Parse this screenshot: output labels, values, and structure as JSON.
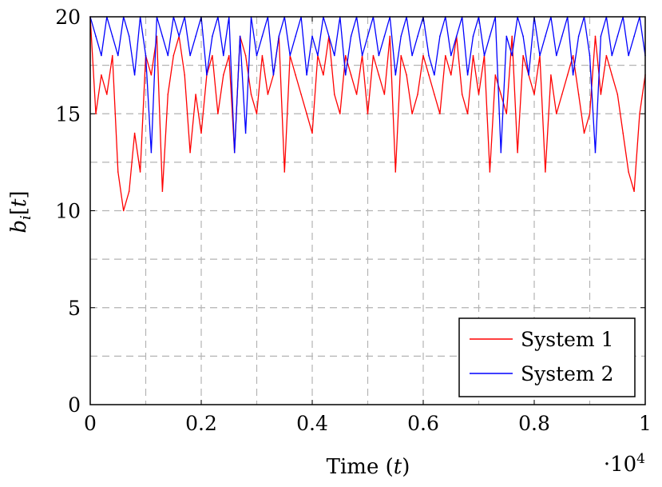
{
  "chart_data": {
    "type": "line",
    "xlabel": "Time (t)",
    "ylabel": "b_i[t]",
    "x_multiplier_label": "·10^4",
    "xlim": [
      0,
      1
    ],
    "ylim": [
      0,
      20
    ],
    "x_ticks": [
      "0",
      "0.2",
      "0.4",
      "0.6",
      "0.8",
      "1"
    ],
    "y_ticks": [
      "0",
      "5",
      "10",
      "15",
      "20"
    ],
    "grid": true,
    "legend_position": "bottom-right",
    "series": [
      {
        "name": "System 1",
        "color": "#ff0000",
        "x": [
          0,
          0.01,
          0.02,
          0.03,
          0.04,
          0.05,
          0.06,
          0.07,
          0.08,
          0.09,
          0.1,
          0.11,
          0.12,
          0.13,
          0.14,
          0.15,
          0.16,
          0.17,
          0.18,
          0.19,
          0.2,
          0.21,
          0.22,
          0.23,
          0.24,
          0.25,
          0.26,
          0.27,
          0.28,
          0.29,
          0.3,
          0.31,
          0.32,
          0.33,
          0.34,
          0.35,
          0.36,
          0.37,
          0.38,
          0.39,
          0.4,
          0.41,
          0.42,
          0.43,
          0.44,
          0.45,
          0.46,
          0.47,
          0.48,
          0.49,
          0.5,
          0.51,
          0.52,
          0.53,
          0.54,
          0.55,
          0.56,
          0.57,
          0.58,
          0.59,
          0.6,
          0.61,
          0.62,
          0.63,
          0.64,
          0.65,
          0.66,
          0.67,
          0.68,
          0.69,
          0.7,
          0.71,
          0.72,
          0.73,
          0.74,
          0.75,
          0.76,
          0.77,
          0.78,
          0.79,
          0.8,
          0.81,
          0.82,
          0.83,
          0.84,
          0.85,
          0.86,
          0.87,
          0.88,
          0.89,
          0.9,
          0.91,
          0.92,
          0.93,
          0.94,
          0.95,
          0.96,
          0.97,
          0.98,
          0.99,
          1.0
        ],
        "values": [
          20,
          15,
          17,
          16,
          18,
          12,
          10,
          11,
          14,
          12,
          18,
          17,
          19,
          11,
          16,
          18,
          19,
          17,
          13,
          16,
          14,
          17,
          18,
          15,
          17,
          18,
          13,
          19,
          18,
          16,
          15,
          18,
          16,
          17,
          19,
          12,
          18,
          17,
          16,
          15,
          14,
          18,
          17,
          19,
          16,
          15,
          18,
          17,
          16,
          18,
          15,
          18,
          17,
          16,
          19,
          12,
          18,
          17,
          15,
          16,
          18,
          17,
          16,
          15,
          18,
          17,
          19,
          16,
          15,
          18,
          16,
          18,
          12,
          17,
          16,
          15,
          19,
          13,
          18,
          17,
          16,
          18,
          12,
          17,
          15,
          16,
          17,
          18,
          16,
          14,
          15,
          19,
          16,
          18,
          17,
          16,
          14,
          12,
          11,
          15,
          17
        ]
      },
      {
        "name": "System 2",
        "color": "#0000ff",
        "x": [
          0,
          0.01,
          0.02,
          0.03,
          0.04,
          0.05,
          0.06,
          0.07,
          0.08,
          0.09,
          0.1,
          0.11,
          0.12,
          0.13,
          0.14,
          0.15,
          0.16,
          0.17,
          0.18,
          0.19,
          0.2,
          0.21,
          0.22,
          0.23,
          0.24,
          0.25,
          0.26,
          0.27,
          0.28,
          0.29,
          0.3,
          0.31,
          0.32,
          0.33,
          0.34,
          0.35,
          0.36,
          0.37,
          0.38,
          0.39,
          0.4,
          0.41,
          0.42,
          0.43,
          0.44,
          0.45,
          0.46,
          0.47,
          0.48,
          0.49,
          0.5,
          0.51,
          0.52,
          0.53,
          0.54,
          0.55,
          0.56,
          0.57,
          0.58,
          0.59,
          0.6,
          0.61,
          0.62,
          0.63,
          0.64,
          0.65,
          0.66,
          0.67,
          0.68,
          0.69,
          0.7,
          0.71,
          0.72,
          0.73,
          0.74,
          0.75,
          0.76,
          0.77,
          0.78,
          0.79,
          0.8,
          0.81,
          0.82,
          0.83,
          0.84,
          0.85,
          0.86,
          0.87,
          0.88,
          0.89,
          0.9,
          0.91,
          0.92,
          0.93,
          0.94,
          0.95,
          0.96,
          0.97,
          0.98,
          0.99,
          1.0
        ],
        "values": [
          20,
          19,
          18,
          20,
          19,
          18,
          20,
          19,
          17,
          20,
          18,
          13,
          20,
          19,
          18,
          20,
          19,
          20,
          18,
          19,
          20,
          17,
          19,
          20,
          18,
          20,
          13,
          19,
          14,
          20,
          18,
          19,
          20,
          17,
          19,
          20,
          18,
          19,
          20,
          17,
          19,
          18,
          20,
          19,
          18,
          20,
          17,
          19,
          20,
          18,
          19,
          20,
          18,
          19,
          20,
          17,
          19,
          20,
          18,
          19,
          20,
          18,
          17,
          19,
          20,
          18,
          19,
          20,
          17,
          19,
          20,
          18,
          19,
          20,
          13,
          19,
          18,
          20,
          19,
          17,
          20,
          18,
          19,
          20,
          18,
          19,
          20,
          17,
          19,
          20,
          18,
          13,
          19,
          20,
          18,
          19,
          20,
          18,
          19,
          20,
          18
        ]
      }
    ]
  }
}
